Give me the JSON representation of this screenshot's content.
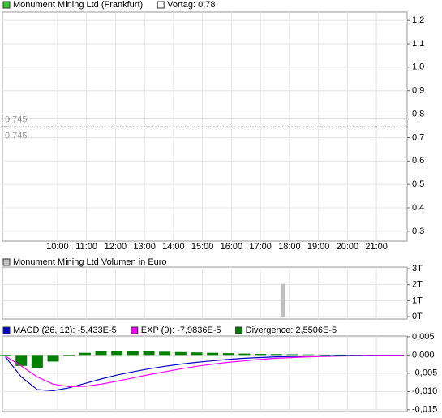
{
  "chart_data": [
    {
      "type": "line",
      "series": [
        {
          "name": "Monument Mining Ltd (Frankfurt)",
          "color": "#33cc33",
          "line_color": "#000000",
          "x": [
            8.1,
            8.35
          ],
          "values": [
            0.745,
            0.745
          ]
        }
      ],
      "prev_close": {
        "label": "Vortag: 0,78",
        "value": 0.78,
        "color": "#ffffff"
      },
      "last_price": {
        "label": "0,745",
        "value": 0.745
      },
      "xlim": [
        8.1,
        22.06
      ],
      "xticks": [
        {
          "value": 10,
          "label": "10:00"
        },
        {
          "value": 11,
          "label": "11:00"
        },
        {
          "value": 12,
          "label": "12:00"
        },
        {
          "value": 13,
          "label": "13:00"
        },
        {
          "value": 14,
          "label": "14:00"
        },
        {
          "value": 15,
          "label": "15:00"
        },
        {
          "value": 16,
          "label": "16:00"
        },
        {
          "value": 17,
          "label": "17:00"
        },
        {
          "value": 18,
          "label": "18:00"
        },
        {
          "value": 19,
          "label": "19:00"
        },
        {
          "value": 20,
          "label": "20:00"
        },
        {
          "value": 21,
          "label": "21:00"
        }
      ],
      "ylim": [
        0.258,
        1.235
      ],
      "yticks": [
        {
          "value": 0.3,
          "label": "0,3"
        },
        {
          "value": 0.4,
          "label": "0,4"
        },
        {
          "value": 0.5,
          "label": "0,5"
        },
        {
          "value": 0.6,
          "label": "0,6"
        },
        {
          "value": 0.7,
          "label": "0,7"
        },
        {
          "value": 0.8,
          "label": "0,8"
        },
        {
          "value": 0.9,
          "label": "0,9"
        },
        {
          "value": 1.0,
          "label": "1,0"
        },
        {
          "value": 1.1,
          "label": "1,1"
        },
        {
          "value": 1.2,
          "label": "1,2"
        }
      ],
      "grid": true
    },
    {
      "type": "bar",
      "series": [
        {
          "name": "Monument Mining Ltd Volumen in Euro",
          "color": "#c0c0c0",
          "x": [
            17.78
          ],
          "values": [
            2.05
          ]
        }
      ],
      "xlim": [
        8.1,
        22.06
      ],
      "xticks": [
        10,
        11,
        12,
        13,
        14,
        15,
        16,
        17,
        18,
        19,
        20,
        21
      ],
      "ylim": [
        -0.15,
        3.1
      ],
      "yticks": [
        {
          "value": 0,
          "label": "0T"
        },
        {
          "value": 1,
          "label": "1T"
        },
        {
          "value": 2,
          "label": "2T"
        },
        {
          "value": 3,
          "label": "3T"
        }
      ],
      "grid": true
    },
    {
      "type": "line",
      "series": [
        {
          "name": "MACD (26, 12): -5,433E-5",
          "color": "#0000cc",
          "type": "line",
          "x": [
            8.2,
            8.75,
            9.3,
            9.85,
            10.4,
            10.95,
            11.5,
            12.05,
            12.6,
            13.15,
            13.7,
            14.25,
            14.8,
            15.35,
            15.9,
            16.45,
            17.0,
            17.55,
            18.1,
            18.65,
            19.2,
            19.75,
            20.3,
            20.85,
            21.4,
            21.95
          ],
          "values": [
            -0.0005,
            -0.006,
            -0.0095,
            -0.0098,
            -0.009,
            -0.0078,
            -0.0066,
            -0.0055,
            -0.0046,
            -0.0038,
            -0.0031,
            -0.0025,
            -0.002,
            -0.0016,
            -0.0012,
            -0.0009,
            -0.0007,
            -0.0005,
            -0.0004,
            -0.0003,
            -0.0002,
            -0.00015,
            -0.0001,
            -8e-05,
            -6e-05,
            -5e-05
          ]
        },
        {
          "name": "EXP (9): -7,9836E-5",
          "color": "#ff00ff",
          "type": "line",
          "x": [
            8.2,
            8.75,
            9.3,
            9.85,
            10.4,
            10.95,
            11.5,
            12.05,
            12.6,
            13.15,
            13.7,
            14.25,
            14.8,
            15.35,
            15.9,
            16.45,
            17.0,
            17.55,
            18.1,
            18.65,
            19.2,
            19.75,
            20.3,
            20.85,
            21.4,
            21.95
          ],
          "values": [
            -0.0003,
            -0.003,
            -0.006,
            -0.008,
            -0.0087,
            -0.0086,
            -0.008,
            -0.0072,
            -0.0063,
            -0.0054,
            -0.0046,
            -0.0038,
            -0.0031,
            -0.0025,
            -0.002,
            -0.0016,
            -0.0012,
            -0.0009,
            -0.0007,
            -0.0005,
            -0.0004,
            -0.0003,
            -0.0002,
            -0.00015,
            -0.0001,
            -8e-05
          ]
        },
        {
          "name": "Divergence: 2,5506E-5",
          "color": "#008000",
          "type": "bar",
          "x": [
            8.2,
            8.75,
            9.3,
            9.85,
            10.4,
            10.95,
            11.5,
            12.05,
            12.6,
            13.15,
            13.7,
            14.25,
            14.8,
            15.35,
            15.9,
            16.45,
            17.0,
            17.55,
            18.1,
            18.65,
            19.2,
            19.75,
            20.3,
            20.85,
            21.4,
            21.95
          ],
          "values": [
            -0.0002,
            -0.003,
            -0.0035,
            -0.0018,
            -0.0003,
            0.0006,
            0.001,
            0.0011,
            0.0011,
            0.001,
            0.0009,
            0.0008,
            0.0007,
            0.0006,
            0.0005,
            0.0004,
            0.0003,
            0.00025,
            0.0002,
            0.00015,
            0.0001,
            0.0001,
            8e-05,
            6e-05,
            4e-05,
            3e-05
          ]
        }
      ],
      "xlim": [
        8.1,
        22.06
      ],
      "xticks": [
        10,
        11,
        12,
        13,
        14,
        15,
        16,
        17,
        18,
        19,
        20,
        21
      ],
      "ylim": [
        -0.0155,
        0.0052
      ],
      "yticks": [
        {
          "value": -0.015,
          "label": "-0,015"
        },
        {
          "value": -0.01,
          "label": "-0,010"
        },
        {
          "value": -0.005,
          "label": "-0,005"
        },
        {
          "value": 0,
          "label": "0,000"
        },
        {
          "value": 0.005,
          "label": "0,005"
        }
      ],
      "grid": true
    }
  ]
}
